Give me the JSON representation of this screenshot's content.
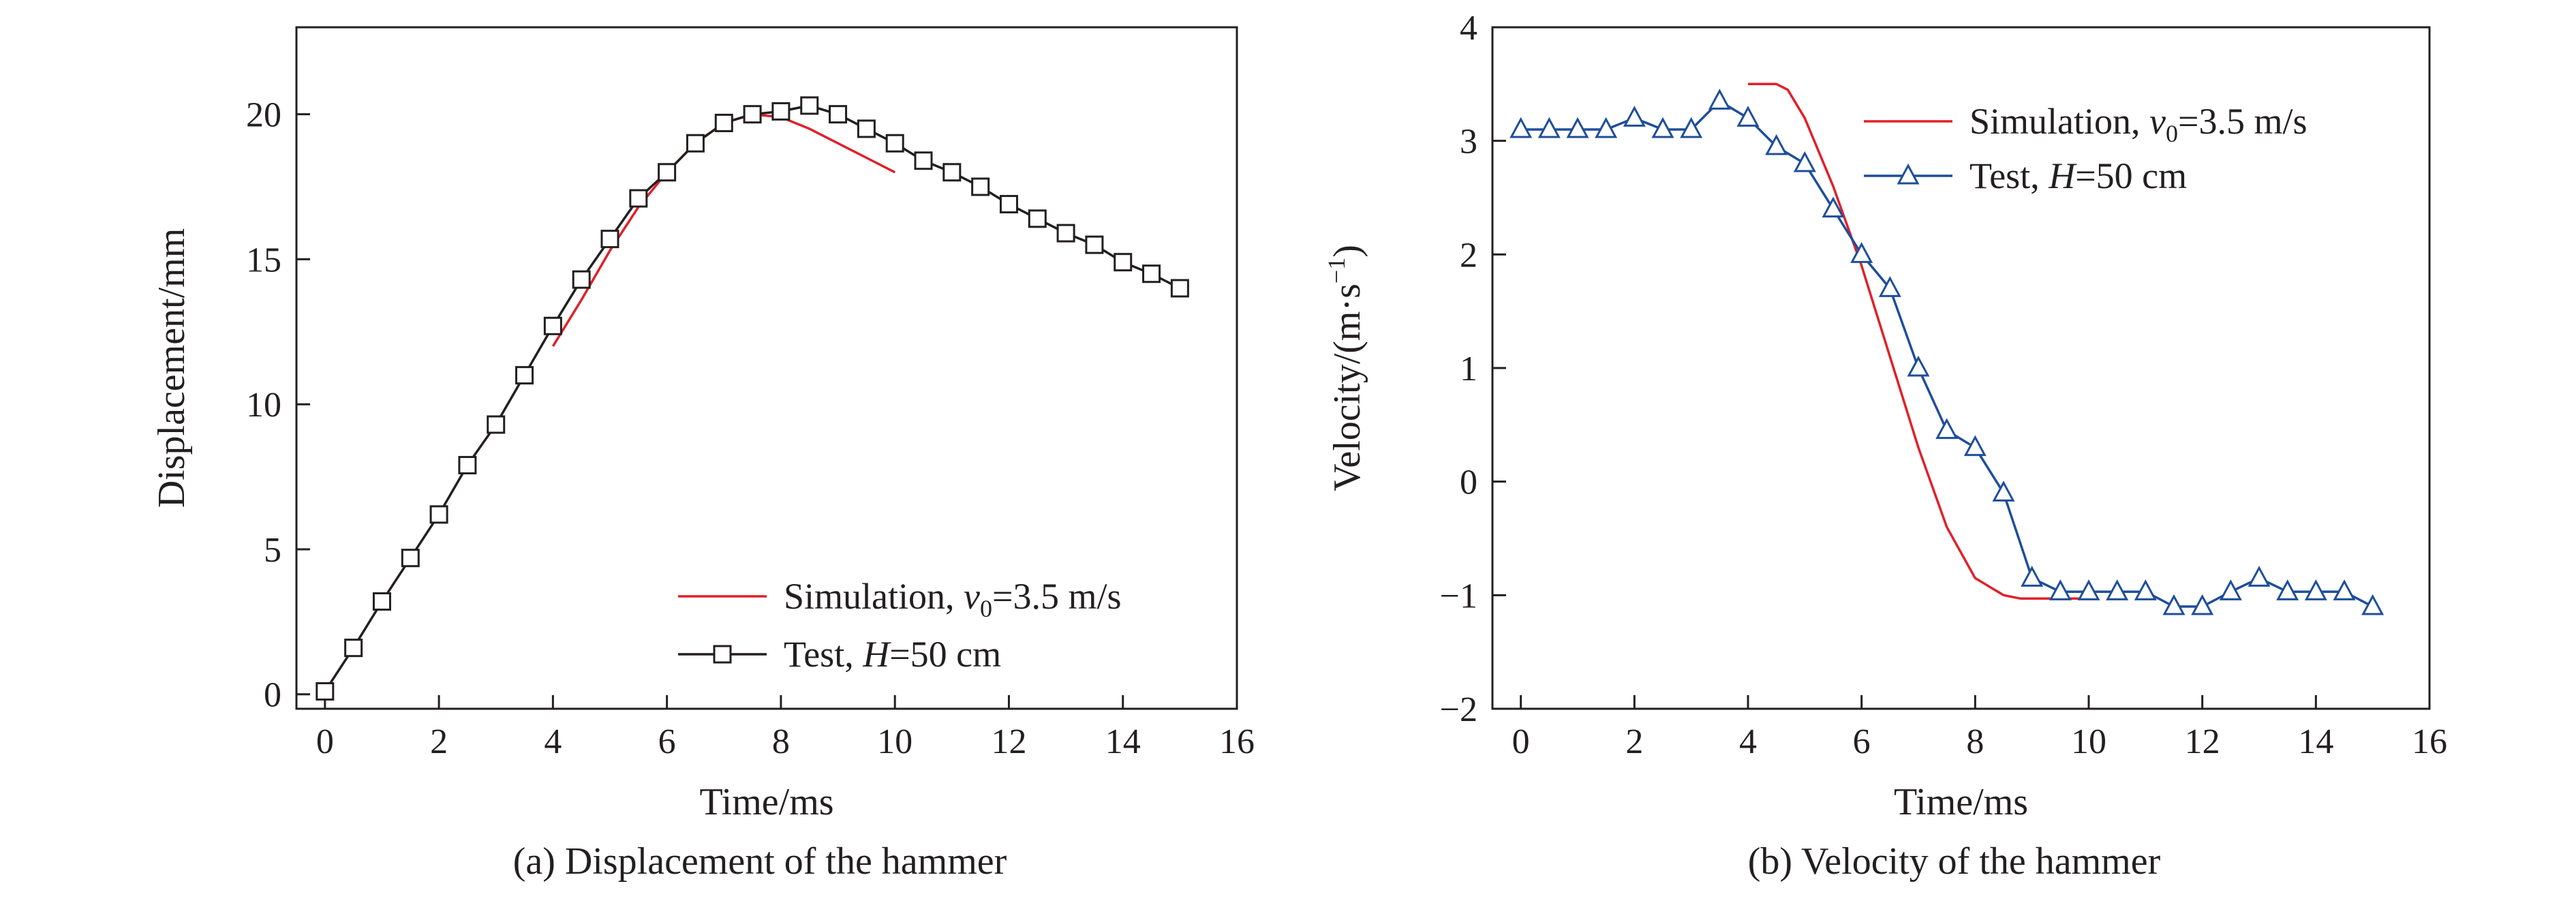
{
  "chart_data": [
    {
      "type": "line",
      "caption": "(a) Displacement of the hammer",
      "xlabel": "Time/ms",
      "ylabel": "Displacement/mm",
      "xlim": [
        -0.5,
        16
      ],
      "ylim": [
        -0.5,
        23
      ],
      "xticks": [
        0,
        2,
        4,
        6,
        8,
        10,
        12,
        14,
        16
      ],
      "yticks": [
        0,
        5,
        10,
        15,
        20
      ],
      "grid": false,
      "legend_position": "bottom-right",
      "series": [
        {
          "name_parts": [
            "Simulation, ",
            "v",
            "0",
            "=3.5 m/s"
          ],
          "color": "#e0202a",
          "marker": "none",
          "x": [
            4.0,
            4.5,
            5.0,
            5.5,
            6.0,
            6.5,
            7.0,
            7.5,
            8.0,
            8.5,
            9.0,
            9.5,
            10.0
          ],
          "y": [
            12.0,
            13.6,
            15.3,
            16.8,
            18.0,
            19.0,
            19.7,
            20.0,
            19.9,
            19.5,
            19.0,
            18.5,
            18.0
          ]
        },
        {
          "name_parts": [
            "Test, ",
            "H",
            "=50 cm"
          ],
          "color": "#231f20",
          "marker": "square",
          "x": [
            0,
            0.5,
            1.0,
            1.5,
            2.0,
            2.5,
            3.0,
            3.5,
            4.0,
            4.5,
            5.0,
            5.5,
            6.0,
            6.5,
            7.0,
            7.5,
            8.0,
            8.5,
            9.0,
            9.5,
            10.0,
            10.5,
            11.0,
            11.5,
            12.0,
            12.5,
            13.0,
            13.5,
            14.0,
            14.5,
            15.0
          ],
          "y": [
            0.1,
            1.6,
            3.2,
            4.7,
            6.2,
            7.9,
            9.3,
            11.0,
            12.7,
            14.3,
            15.7,
            17.1,
            18.0,
            19.0,
            19.7,
            20.0,
            20.1,
            20.3,
            20.0,
            19.5,
            19.0,
            18.4,
            18.0,
            17.5,
            16.9,
            16.4,
            15.9,
            15.5,
            14.9,
            14.5,
            14.0
          ]
        }
      ]
    },
    {
      "type": "line",
      "caption": "(b) Velocity of the hammer",
      "xlabel": "Time/ms",
      "ylabel_parts": [
        "Velocity/(m·s",
        "−1",
        ")"
      ],
      "xlim": [
        -0.5,
        16
      ],
      "ylim": [
        -2,
        4
      ],
      "xticks": [
        0,
        2,
        4,
        6,
        8,
        10,
        12,
        14,
        16
      ],
      "yticks": [
        -2,
        -1,
        0,
        1,
        2,
        3,
        4
      ],
      "grid": false,
      "legend_position": "top-right",
      "series": [
        {
          "name_parts": [
            "Simulation, ",
            "v",
            "0",
            "=3.5 m/s"
          ],
          "color": "#e0202a",
          "marker": "none",
          "x": [
            4.0,
            4.5,
            4.7,
            5.0,
            5.5,
            6.0,
            6.5,
            7.0,
            7.5,
            8.0,
            8.5,
            8.8,
            9.0,
            9.3,
            10.0
          ],
          "y": [
            3.5,
            3.5,
            3.45,
            3.2,
            2.6,
            1.9,
            1.1,
            0.3,
            -0.4,
            -0.85,
            -1.0,
            -1.03,
            -1.03,
            -1.03,
            -1.03
          ]
        },
        {
          "name_parts": [
            "Test, ",
            "H",
            "=50 cm"
          ],
          "color": "#1f4e9a",
          "marker": "triangle",
          "x": [
            0,
            0.5,
            1.0,
            1.5,
            2.0,
            2.5,
            3.0,
            3.5,
            4.0,
            4.5,
            5.0,
            5.5,
            6.0,
            6.5,
            7.0,
            7.5,
            8.0,
            8.5,
            9.0,
            9.5,
            10.0,
            10.5,
            11.0,
            11.5,
            12.0,
            12.5,
            13.0,
            13.5,
            14.0,
            14.5,
            15.0
          ],
          "y": [
            3.1,
            3.1,
            3.1,
            3.1,
            3.2,
            3.1,
            3.1,
            3.35,
            3.2,
            2.95,
            2.8,
            2.4,
            2.0,
            1.7,
            1.0,
            0.45,
            0.3,
            -0.1,
            -0.85,
            -0.97,
            -0.97,
            -0.97,
            -0.97,
            -1.1,
            -1.1,
            -0.97,
            -0.85,
            -0.97,
            -0.97,
            -0.97,
            -1.1
          ]
        }
      ]
    }
  ]
}
